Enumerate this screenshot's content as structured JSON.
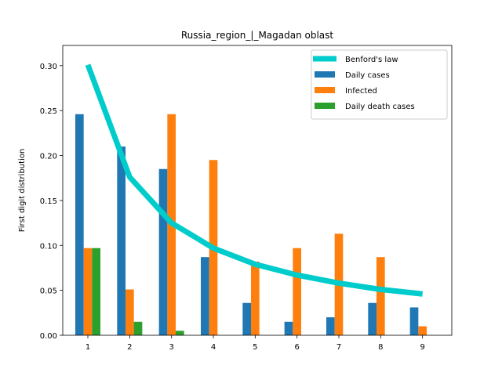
{
  "chart_data": {
    "type": "bar",
    "title": "Russia_region_|_Magadan oblast",
    "xlabel": "",
    "ylabel": "First digit distribution",
    "categories": [
      "1",
      "2",
      "3",
      "4",
      "5",
      "6",
      "7",
      "8",
      "9"
    ],
    "x": [
      1,
      2,
      3,
      4,
      5,
      6,
      7,
      8,
      9
    ],
    "xlim": [
      0.4,
      9.7
    ],
    "ylim": [
      0,
      0.3225
    ],
    "yticks": [
      "0.00",
      "0.05",
      "0.10",
      "0.15",
      "0.20",
      "0.25",
      "0.30"
    ],
    "grid": false,
    "legend_position": "top-right",
    "series": [
      {
        "name": "Daily cases",
        "kind": "bar",
        "color": "#1f77b4",
        "values": [
          0.246,
          0.21,
          0.185,
          0.087,
          0.036,
          0.015,
          0.02,
          0.036,
          0.031
        ]
      },
      {
        "name": "Infected",
        "kind": "bar",
        "color": "#ff7f0e",
        "values": [
          0.097,
          0.051,
          0.246,
          0.195,
          0.082,
          0.097,
          0.113,
          0.087,
          0.01
        ]
      },
      {
        "name": "Daily death cases",
        "kind": "bar",
        "color": "#2ca02c",
        "values": [
          0.097,
          0.015,
          0.005,
          0,
          0,
          0,
          0,
          0,
          0
        ]
      },
      {
        "name": "Benford's law",
        "kind": "line",
        "color": "#00cccc",
        "values": [
          0.301,
          0.176,
          0.125,
          0.097,
          0.079,
          0.067,
          0.058,
          0.051,
          0.046
        ]
      }
    ]
  }
}
